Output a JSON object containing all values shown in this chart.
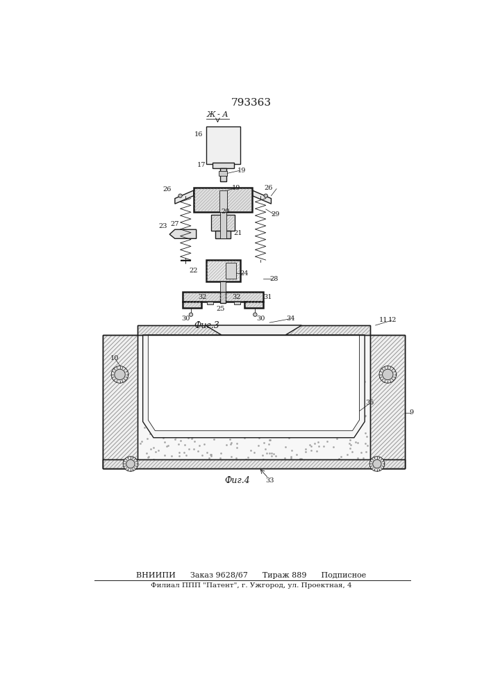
{
  "title": "793363",
  "title_fontsize": 11,
  "footer_line1": "ВНИИПИ      Заказ 9628/67      Тираж 889      Подписное",
  "footer_line2": "Филиал ППП \"Патент\", г. Ужгород, ул. Проектная, 4",
  "footer_fontsize": 8,
  "bg_color": "#ffffff",
  "line_color": "#1a1a1a",
  "section_label": "Ж - А",
  "fig3_label": "Фиг.3",
  "fig4_label": "Фиг.4"
}
